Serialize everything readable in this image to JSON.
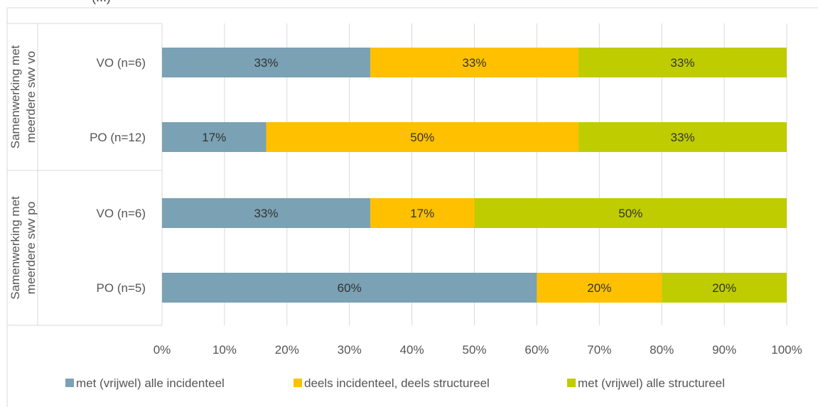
{
  "header_fragment": "(...)",
  "colors": {
    "incidental": "#7aa1b4",
    "mixed": "#ffc000",
    "structural": "#bfcc00",
    "grid": "#d9d9d9",
    "border": "#d9d9d9",
    "text": "#595959"
  },
  "chart_data": {
    "type": "bar",
    "orientation": "horizontal",
    "stacked": true,
    "xlim": [
      0,
      100
    ],
    "x_ticks": [
      "0%",
      "10%",
      "20%",
      "30%",
      "40%",
      "50%",
      "60%",
      "70%",
      "80%",
      "90%",
      "100%"
    ],
    "groups": [
      {
        "label": "Samenwerking met meerdere swv vo",
        "label_lines": [
          "Samenwerking met",
          "meerdere swv vo"
        ],
        "categories": [
          "VO (n=6)",
          "PO (n=12)"
        ]
      },
      {
        "label": "Samenwerking met meerdere swv po",
        "label_lines": [
          "Samenwerking met",
          "meerdere swv po"
        ],
        "categories": [
          "VO (n=6)",
          "PO (n=5)"
        ]
      }
    ],
    "categories": [
      "VO (n=6)",
      "PO (n=12)",
      "VO (n=6)",
      "PO (n=5)"
    ],
    "series": [
      {
        "name": "met (vrijwel) alle incidenteel",
        "values": [
          33.33,
          16.67,
          33.33,
          60
        ],
        "labels": [
          "33%",
          "17%",
          "33%",
          "60%"
        ]
      },
      {
        "name": "deels incidenteel, deels structureel",
        "values": [
          33.33,
          50,
          16.67,
          20
        ],
        "labels": [
          "33%",
          "50%",
          "17%",
          "20%"
        ]
      },
      {
        "name": "met (vrijwel) alle structureel",
        "values": [
          33.33,
          33.33,
          50,
          20
        ],
        "labels": [
          "33%",
          "33%",
          "50%",
          "20%"
        ]
      }
    ],
    "grid": true,
    "legend_position": "bottom"
  }
}
